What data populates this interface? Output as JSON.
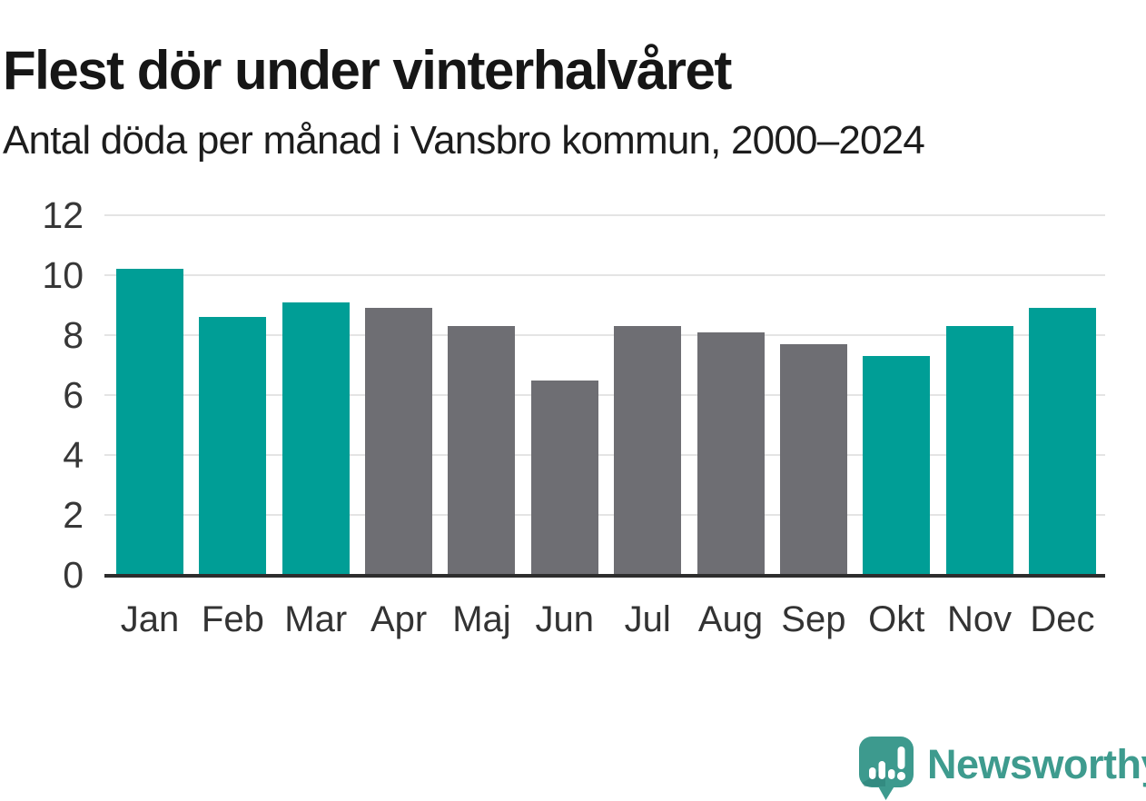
{
  "header": {
    "title": "Flest dör under vinterhalvåret",
    "subtitle": "Antal döda per månad i Vansbro kommun, 2000–2024"
  },
  "footer": {
    "brand_name": "Newsworthy",
    "brand_color": "#3e9b8e",
    "logo_icon": "speech-bubble-bar-chart-exclamation-icon"
  },
  "chart_data": {
    "type": "bar",
    "title": "Flest dör under vinterhalvåret",
    "subtitle": "Antal döda per månad i Vansbro kommun, 2000–2024",
    "categories": [
      "Jan",
      "Feb",
      "Mar",
      "Apr",
      "Maj",
      "Jun",
      "Jul",
      "Aug",
      "Sep",
      "Okt",
      "Nov",
      "Dec"
    ],
    "values": [
      10.2,
      8.6,
      9.1,
      8.9,
      8.3,
      6.5,
      8.3,
      8.1,
      7.7,
      7.3,
      8.3,
      8.9
    ],
    "bar_colors": [
      "#009e96",
      "#009e96",
      "#009e96",
      "#6e6e73",
      "#6e6e73",
      "#6e6e73",
      "#6e6e73",
      "#6e6e73",
      "#6e6e73",
      "#009e96",
      "#009e96",
      "#009e96"
    ],
    "highlight_color": "#009e96",
    "base_color": "#6e6e73",
    "highlighted_months": [
      "Jan",
      "Feb",
      "Mar",
      "Okt",
      "Nov",
      "Dec"
    ],
    "xlabel": "",
    "ylabel": "",
    "ylim": [
      0,
      12
    ],
    "yticks": [
      0,
      2,
      4,
      6,
      8,
      10,
      12
    ],
    "grid": "horizontal",
    "legend": "none"
  }
}
